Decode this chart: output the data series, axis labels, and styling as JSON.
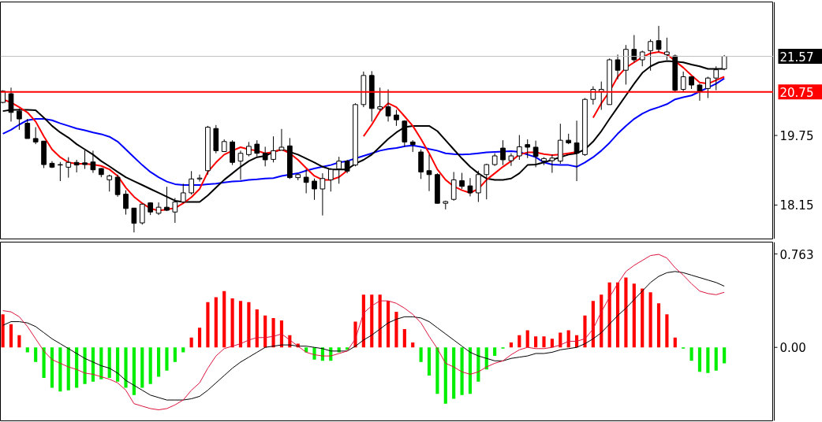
{
  "chart_data": [
    {
      "type": "candlestick",
      "categories": [
        null,
        null,
        null,
        null,
        null,
        null,
        null,
        null,
        null,
        null,
        null,
        null,
        null,
        null,
        null,
        null,
        null,
        null,
        null,
        null,
        null,
        null,
        null,
        null,
        null,
        null,
        null,
        null,
        null,
        null,
        null,
        null,
        null,
        null,
        null,
        null,
        null,
        null,
        null,
        null,
        null,
        null,
        null,
        null,
        null,
        null,
        null,
        null,
        null,
        null,
        null,
        null,
        null,
        null,
        null,
        null,
        null,
        null,
        null,
        null,
        null,
        null,
        null,
        null,
        null,
        null,
        null,
        null,
        null,
        null,
        null,
        null,
        null,
        null,
        null,
        null,
        null,
        null,
        null,
        null,
        null,
        null,
        null,
        null,
        null,
        null,
        null,
        null,
        null
      ],
      "ohlc": [
        [
          20.51,
          20.79,
          20.49,
          20.77
        ],
        [
          20.71,
          20.85,
          20.07,
          20.28
        ],
        [
          20.31,
          20.37,
          19.88,
          20.13
        ],
        [
          20.03,
          20.13,
          19.68,
          19.68
        ],
        [
          19.68,
          19.94,
          19.55,
          19.6
        ],
        [
          19.62,
          19.62,
          19.0,
          19.08
        ],
        [
          19.11,
          19.16,
          19.0,
          19.02
        ],
        [
          19.08,
          19.14,
          18.7,
          19.07
        ],
        [
          19.02,
          19.25,
          18.78,
          19.13
        ],
        [
          19.13,
          19.19,
          18.9,
          19.07
        ],
        [
          19.12,
          19.41,
          18.98,
          19.08
        ],
        [
          19.14,
          19.4,
          18.89,
          18.96
        ],
        [
          18.99,
          19.0,
          18.79,
          18.85
        ],
        [
          18.73,
          18.85,
          18.46,
          18.82
        ],
        [
          18.79,
          18.85,
          18.34,
          18.39
        ],
        [
          18.4,
          18.49,
          17.93,
          18.07
        ],
        [
          18.08,
          18.08,
          17.52,
          17.73
        ],
        [
          17.74,
          18.18,
          17.7,
          18.17
        ],
        [
          18.2,
          18.21,
          17.92,
          17.99
        ],
        [
          17.96,
          18.21,
          17.92,
          18.1
        ],
        [
          18.1,
          18.57,
          18.01,
          18.03
        ],
        [
          17.99,
          18.31,
          17.74,
          18.22
        ],
        [
          18.22,
          18.64,
          18.19,
          18.43
        ],
        [
          18.43,
          18.93,
          18.39,
          18.75
        ],
        [
          18.75,
          18.85,
          18.69,
          18.77
        ],
        [
          18.94,
          19.97,
          18.85,
          19.94
        ],
        [
          19.91,
          19.99,
          19.34,
          19.4
        ],
        [
          19.38,
          19.66,
          19.37,
          19.61
        ],
        [
          19.6,
          19.64,
          19.07,
          19.13
        ],
        [
          19.16,
          19.4,
          18.73,
          19.34
        ],
        [
          19.31,
          19.6,
          19.27,
          19.5
        ],
        [
          19.55,
          19.64,
          19.27,
          19.34
        ],
        [
          19.34,
          19.49,
          19.04,
          19.19
        ],
        [
          19.2,
          19.73,
          19.13,
          19.4
        ],
        [
          19.41,
          19.9,
          19.41,
          19.48
        ],
        [
          19.51,
          19.69,
          18.75,
          18.78
        ],
        [
          18.78,
          18.87,
          18.72,
          18.85
        ],
        [
          18.79,
          18.97,
          18.42,
          18.67
        ],
        [
          18.7,
          18.76,
          18.27,
          18.52
        ],
        [
          18.52,
          18.88,
          17.91,
          18.76
        ],
        [
          18.73,
          19.0,
          18.46,
          18.97
        ],
        [
          18.98,
          19.26,
          18.64,
          19.16
        ],
        [
          19.16,
          19.19,
          18.88,
          18.93
        ],
        [
          19.07,
          20.49,
          19.04,
          20.46
        ],
        [
          20.46,
          21.22,
          20.4,
          21.13
        ],
        [
          21.13,
          21.23,
          20.07,
          20.37
        ],
        [
          20.36,
          20.85,
          20.31,
          20.41
        ],
        [
          20.41,
          20.81,
          20.07,
          20.2
        ],
        [
          20.22,
          20.34,
          19.97,
          20.11
        ],
        [
          20.08,
          20.1,
          19.49,
          19.6
        ],
        [
          19.6,
          19.64,
          19.37,
          19.54
        ],
        [
          19.37,
          19.43,
          18.75,
          18.91
        ],
        [
          18.94,
          19.31,
          18.47,
          18.85
        ],
        [
          18.85,
          18.88,
          18.19,
          18.19
        ],
        [
          18.19,
          18.25,
          18.05,
          18.23
        ],
        [
          18.28,
          18.91,
          18.25,
          18.73
        ],
        [
          18.71,
          18.89,
          18.52,
          18.58
        ],
        [
          18.59,
          18.77,
          18.35,
          18.43
        ],
        [
          18.43,
          18.94,
          18.22,
          18.85
        ],
        [
          18.85,
          19.1,
          18.28,
          19.08
        ],
        [
          19.08,
          19.34,
          19.05,
          19.28
        ],
        [
          19.46,
          19.64,
          19.07,
          19.19
        ],
        [
          19.17,
          19.34,
          19.05,
          19.28
        ],
        [
          19.28,
          19.76,
          19.19,
          19.49
        ],
        [
          19.54,
          19.66,
          19.23,
          19.48
        ],
        [
          19.48,
          19.63,
          19.02,
          19.27
        ],
        [
          19.16,
          19.25,
          19.07,
          19.22
        ],
        [
          19.17,
          19.31,
          18.89,
          19.23
        ],
        [
          19.16,
          20.02,
          19.1,
          19.64
        ],
        [
          19.64,
          19.79,
          19.55,
          19.58
        ],
        [
          19.58,
          20.09,
          18.7,
          19.34
        ],
        [
          19.31,
          20.61,
          19.28,
          20.58
        ],
        [
          20.58,
          20.88,
          20.46,
          20.81
        ],
        [
          20.76,
          20.99,
          20.34,
          20.81
        ],
        [
          20.46,
          21.52,
          20.46,
          21.49
        ],
        [
          21.49,
          21.61,
          21.04,
          21.25
        ],
        [
          21.25,
          21.83,
          20.92,
          21.73
        ],
        [
          21.73,
          22.06,
          21.43,
          21.49
        ],
        [
          21.49,
          21.7,
          21.34,
          21.67
        ],
        [
          21.7,
          21.96,
          21.24,
          21.91
        ],
        [
          21.93,
          22.27,
          21.67,
          21.73
        ],
        [
          21.61,
          22.0,
          21.49,
          21.67
        ],
        [
          21.58,
          21.61,
          20.76,
          20.79
        ],
        [
          20.81,
          21.22,
          20.76,
          21.1
        ],
        [
          21.1,
          21.11,
          20.82,
          20.91
        ],
        [
          20.91,
          20.94,
          20.55,
          20.76
        ],
        [
          20.83,
          21.1,
          20.61,
          21.07
        ],
        [
          21.07,
          21.34,
          20.79,
          21.26
        ],
        [
          21.28,
          21.6,
          21.25,
          21.57
        ]
      ],
      "series": [
        {
          "type": "line",
          "color": "#0000ff",
          "values": [
            19.79,
            19.88,
            20.0,
            20.1,
            20.13,
            20.13,
            20.1,
            20.03,
            19.97,
            19.91,
            19.87,
            19.82,
            19.78,
            19.72,
            19.61,
            19.43,
            19.25,
            19.07,
            18.91,
            18.79,
            18.69,
            18.63,
            18.61,
            18.61,
            18.61,
            18.63,
            18.64,
            18.67,
            18.69,
            18.7,
            18.73,
            18.74,
            18.76,
            18.77,
            18.82,
            18.85,
            18.88,
            18.94,
            18.99,
            19.03,
            19.07,
            19.13,
            19.16,
            19.22,
            19.28,
            19.34,
            19.4,
            19.44,
            19.46,
            19.5,
            19.52,
            19.49,
            19.44,
            19.4,
            19.34,
            19.32,
            19.31,
            19.32,
            19.34,
            19.36,
            19.37,
            19.38,
            19.39,
            19.37,
            19.31,
            19.25,
            19.13,
            19.08,
            19.07,
            19.07,
            19.03,
            19.13,
            19.25,
            19.4,
            19.58,
            19.79,
            19.97,
            20.13,
            20.25,
            20.34,
            20.4,
            20.47,
            20.58,
            20.63,
            20.67,
            20.76,
            20.85,
            20.94,
            21.06
          ]
        },
        {
          "type": "line",
          "color": "#000000",
          "values": [
            20.31,
            20.34,
            20.34,
            20.34,
            20.33,
            20.16,
            19.97,
            19.82,
            19.7,
            19.55,
            19.43,
            19.31,
            19.16,
            19.04,
            18.91,
            18.79,
            18.7,
            18.61,
            18.52,
            18.43,
            18.34,
            18.25,
            18.22,
            18.22,
            18.22,
            18.37,
            18.55,
            18.73,
            18.88,
            19.03,
            19.16,
            19.25,
            19.28,
            19.37,
            19.43,
            19.37,
            19.31,
            19.22,
            19.13,
            19.03,
            18.97,
            18.97,
            18.97,
            19.1,
            19.19,
            19.31,
            19.49,
            19.67,
            19.82,
            19.94,
            19.97,
            19.97,
            19.97,
            19.85,
            19.64,
            19.43,
            19.22,
            19.03,
            18.88,
            18.76,
            18.73,
            18.73,
            18.76,
            18.88,
            19.07,
            19.08,
            19.13,
            19.19,
            19.25,
            19.31,
            19.34,
            19.43,
            19.61,
            19.85,
            20.13,
            20.4,
            20.67,
            20.94,
            21.19,
            21.34,
            21.43,
            21.46,
            21.45,
            21.43,
            21.38,
            21.34,
            21.28,
            21.28,
            21.28
          ]
        },
        {
          "type": "line",
          "color": "#ff0000",
          "values": [
            20.58,
            20.51,
            20.4,
            20.28,
            20.07,
            19.73,
            19.43,
            19.25,
            19.13,
            19.1,
            19.1,
            19.08,
            19.05,
            18.97,
            18.82,
            18.55,
            18.34,
            18.19,
            18.07,
            18.02,
            18.05,
            18.08,
            18.19,
            18.33,
            18.52,
            18.91,
            19.13,
            19.31,
            19.4,
            19.48,
            19.43,
            19.4,
            19.34,
            19.37,
            19.43,
            19.34,
            19.19,
            19.0,
            18.82,
            18.73,
            18.73,
            18.79,
            18.94,
            null,
            19.73,
            20.0,
            20.31,
            20.49,
            20.4,
            20.19,
            19.97,
            19.67,
            19.34,
            18.97,
            18.73,
            18.58,
            18.49,
            18.43,
            18.52,
            18.73,
            18.88,
            19.03,
            19.16,
            19.31,
            19.36,
            19.36,
            19.32,
            19.3,
            19.31,
            19.34,
            19.37,
            null,
            20.16,
            20.49,
            20.76,
            21.1,
            21.31,
            21.43,
            21.55,
            21.64,
            21.67,
            21.62,
            21.46,
            21.31,
            21.13,
            20.97,
            20.94,
            21.02,
            21.1
          ]
        }
      ],
      "ylim": [
        17.37,
        22.82
      ],
      "yticks": [
        18.15,
        19.75
      ],
      "ref_lines": [
        {
          "axis": "y",
          "value": 21.57,
          "label": "21.57",
          "color": "#c0c0c0"
        },
        {
          "axis": "y",
          "value": 20.75,
          "label": "20.75",
          "color": "#ff0000"
        }
      ],
      "tick_labels": "y",
      "grid": false
    },
    {
      "type": "bar",
      "categories": [
        null,
        null,
        null,
        null,
        null,
        null,
        null,
        null,
        null,
        null,
        null,
        null,
        null,
        null,
        null,
        null,
        null,
        null,
        null,
        null,
        null,
        null,
        null,
        null,
        null,
        null,
        null,
        null,
        null,
        null,
        null,
        null,
        null,
        null,
        null,
        null,
        null,
        null,
        null,
        null,
        null,
        null,
        null,
        null,
        null,
        null,
        null,
        null,
        null,
        null,
        null,
        null,
        null,
        null,
        null,
        null,
        null,
        null,
        null,
        null,
        null,
        null,
        null,
        null,
        null,
        null,
        null,
        null,
        null,
        null,
        null,
        null,
        null,
        null,
        null,
        null,
        null,
        null,
        null,
        null,
        null,
        null,
        null,
        null,
        null,
        null,
        null,
        null,
        null
      ],
      "series": [
        {
          "type": "bar",
          "colors": [
            "#ff0000",
            "#ff0000",
            "#ff0000",
            "#00ee00",
            "#00ee00",
            "#00ee00",
            "#00ee00",
            "#00ee00",
            "#00ee00",
            "#00ee00",
            "#00ee00",
            "#00ee00",
            "#00ee00",
            "#00ee00",
            "#00ee00",
            "#00ee00",
            "#00ee00",
            "#00ee00",
            "#00ee00",
            "#00ee00",
            "#00ee00",
            "#00ee00",
            "#00ee00",
            "#ff0000",
            "#ff0000",
            "#ff0000",
            "#ff0000",
            "#ff0000",
            "#ff0000",
            "#ff0000",
            "#ff0000",
            "#ff0000",
            "#ff0000",
            "#ff0000",
            "#ff0000",
            "#ff0000",
            "#ff0000",
            "#00ee00",
            "#00ee00",
            "#00ee00",
            "#00ee00",
            "#00ee00",
            "#00ee00",
            "#ff0000",
            "#ff0000",
            "#ff0000",
            "#ff0000",
            "#ff0000",
            "#ff0000",
            "#ff0000",
            "#ff0000",
            "#00ee00",
            "#00ee00",
            "#00ee00",
            "#00ee00",
            "#00ee00",
            "#00ee00",
            "#00ee00",
            "#00ee00",
            "#00ee00",
            "#00ee00",
            "#00ee00",
            "#ff0000",
            "#ff0000",
            "#ff0000",
            "#ff0000",
            "#ff0000",
            "#ff0000",
            "#ff0000",
            "#ff0000",
            "#ff0000",
            "#ff0000",
            "#ff0000",
            "#ff0000",
            "#ff0000",
            "#ff0000",
            "#ff0000",
            "#ff0000",
            "#ff0000",
            "#ff0000",
            "#ff0000",
            "#ff0000",
            "#ff0000",
            "#00ee00",
            "#00ee00",
            "#00ee00",
            "#00ee00",
            "#00ee00",
            "#00ee00"
          ],
          "values": [
            0.27,
            0.19,
            0.1,
            -0.04,
            -0.12,
            -0.25,
            -0.33,
            -0.36,
            -0.35,
            -0.33,
            -0.3,
            -0.28,
            -0.26,
            -0.25,
            -0.28,
            -0.33,
            -0.39,
            -0.33,
            -0.3,
            -0.24,
            -0.19,
            -0.12,
            -0.04,
            0.08,
            0.16,
            0.37,
            0.41,
            0.46,
            0.4,
            0.38,
            0.37,
            0.31,
            0.26,
            0.24,
            0.22,
            0.1,
            0.03,
            -0.04,
            -0.1,
            -0.11,
            -0.11,
            -0.04,
            -0.02,
            0.21,
            0.43,
            0.43,
            0.43,
            0.38,
            0.29,
            0.15,
            0.04,
            -0.12,
            -0.23,
            -0.38,
            -0.46,
            -0.42,
            -0.39,
            -0.38,
            -0.28,
            -0.18,
            -0.07,
            -0.01,
            0.04,
            0.1,
            0.14,
            0.09,
            0.09,
            0.07,
            0.12,
            0.14,
            0.1,
            0.26,
            0.38,
            0.43,
            0.53,
            0.53,
            0.57,
            0.52,
            0.48,
            0.45,
            0.36,
            0.27,
            0.08,
            -0.01,
            -0.11,
            -0.2,
            -0.21,
            -0.19,
            -0.13
          ]
        },
        {
          "type": "line",
          "color": "#000000",
          "values": [
            0.18,
            0.21,
            0.21,
            0.2,
            0.17,
            0.12,
            0.07,
            0.03,
            -0.01,
            -0.05,
            -0.09,
            -0.12,
            -0.15,
            -0.17,
            -0.21,
            -0.27,
            -0.31,
            -0.35,
            -0.39,
            -0.41,
            -0.43,
            -0.43,
            -0.43,
            -0.42,
            -0.4,
            -0.35,
            -0.29,
            -0.23,
            -0.17,
            -0.12,
            -0.08,
            -0.04,
            0.0,
            0.01,
            0.02,
            0.02,
            0.01,
            0.01,
            0.0,
            -0.01,
            -0.03,
            -0.03,
            -0.03,
            0.01,
            0.06,
            0.1,
            0.15,
            0.2,
            0.23,
            0.25,
            0.25,
            0.24,
            0.21,
            0.16,
            0.11,
            0.06,
            0.01,
            -0.04,
            -0.07,
            -0.09,
            -0.11,
            -0.11,
            -0.09,
            -0.08,
            -0.07,
            -0.05,
            -0.05,
            -0.04,
            -0.02,
            -0.01,
            0.0,
            0.03,
            0.07,
            0.12,
            0.19,
            0.26,
            0.32,
            0.39,
            0.46,
            0.53,
            0.58,
            0.61,
            0.62,
            0.61,
            0.59,
            0.57,
            0.55,
            0.53,
            0.5
          ]
        },
        {
          "type": "line",
          "color": "#dc143c",
          "values": [
            0.3,
            0.29,
            0.25,
            0.17,
            0.07,
            -0.03,
            -0.1,
            -0.13,
            -0.16,
            -0.18,
            -0.21,
            -0.22,
            -0.24,
            -0.26,
            -0.29,
            -0.35,
            -0.46,
            -0.48,
            -0.5,
            -0.51,
            -0.5,
            -0.47,
            -0.43,
            -0.35,
            -0.29,
            -0.17,
            -0.07,
            -0.01,
            0.01,
            0.03,
            0.06,
            0.08,
            0.08,
            0.09,
            0.11,
            0.06,
            0.01,
            -0.04,
            -0.06,
            -0.07,
            -0.07,
            -0.05,
            -0.03,
            0.07,
            0.28,
            0.34,
            0.38,
            0.38,
            0.36,
            0.32,
            0.27,
            0.2,
            0.09,
            -0.01,
            -0.13,
            -0.16,
            -0.2,
            -0.22,
            -0.2,
            -0.16,
            -0.13,
            -0.11,
            -0.06,
            -0.02,
            0.0,
            -0.01,
            -0.01,
            0.0,
            0.02,
            0.05,
            0.05,
            0.07,
            0.15,
            0.29,
            0.41,
            0.52,
            0.62,
            0.67,
            0.71,
            0.75,
            0.76,
            0.73,
            0.65,
            0.59,
            0.52,
            0.46,
            0.44,
            0.43,
            0.45
          ]
        }
      ],
      "ylim": [
        -0.6,
        0.86
      ],
      "yticks": [
        0.763,
        {
          "value": 0,
          "label": "0.00"
        }
      ],
      "tick_labels": "y",
      "grid": false
    }
  ]
}
